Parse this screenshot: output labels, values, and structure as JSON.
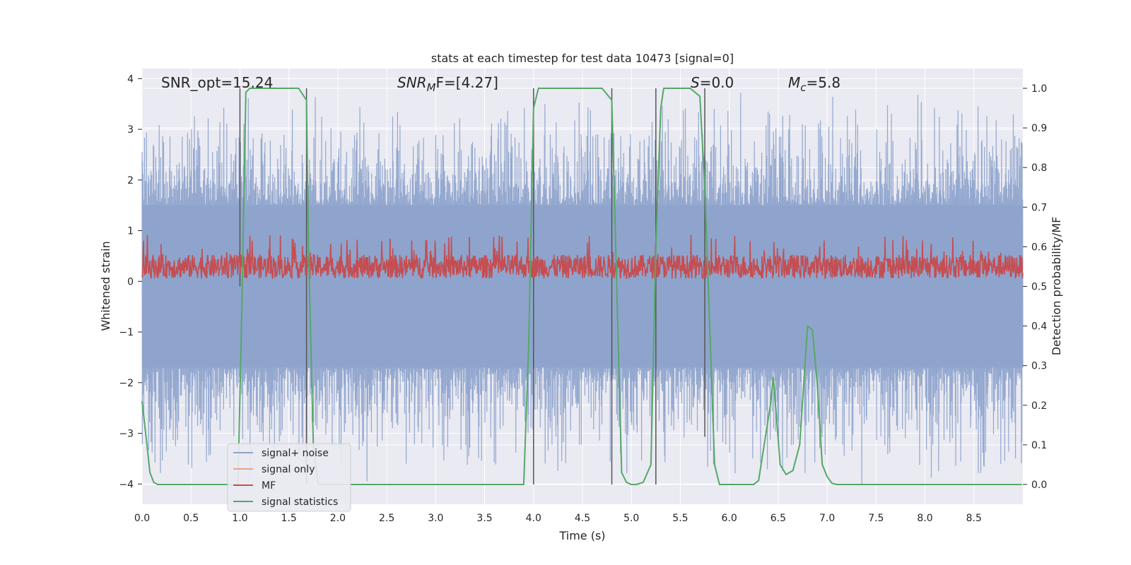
{
  "chart_data": {
    "type": "line",
    "title": "stats at each timestep for test data 10473 [signal=0]",
    "xlabel": "Time (s)",
    "ylabel": "Whitened strain",
    "y2label": "Detection probability/MF",
    "xlim": [
      0,
      9.0
    ],
    "ylim": [
      -4.4,
      4.2
    ],
    "y2lim": [
      -0.05,
      1.05
    ],
    "xticks": [
      0.0,
      0.5,
      1.0,
      1.5,
      2.0,
      2.5,
      3.0,
      3.5,
      4.0,
      4.5,
      5.0,
      5.5,
      6.0,
      6.5,
      7.0,
      7.5,
      8.0,
      8.5
    ],
    "xtick_labels": [
      "0.0",
      "0.5",
      "1.0",
      "1.5",
      "2.0",
      "2.5",
      "3.0",
      "3.5",
      "4.0",
      "4.5",
      "5.0",
      "5.5",
      "6.0",
      "6.5",
      "7.0",
      "7.5",
      "8.0",
      "8.5"
    ],
    "yticks": [
      -4,
      -3,
      -2,
      -1,
      0,
      1,
      2,
      3,
      4
    ],
    "ytick_labels": [
      "−4",
      "−3",
      "−2",
      "−1",
      "0",
      "1",
      "2",
      "3",
      "4"
    ],
    "y2ticks": [
      0.0,
      0.1,
      0.2,
      0.3,
      0.4,
      0.5,
      0.6,
      0.7,
      0.8,
      0.9,
      1.0
    ],
    "y2tick_labels": [
      "0.0",
      "0.1",
      "0.2",
      "0.3",
      "0.4",
      "0.5",
      "0.6",
      "0.7",
      "0.8",
      "0.9",
      "1.0"
    ],
    "annotations": {
      "snr_opt": "SNR_opt=15.24",
      "snr_mf_name": "SNR",
      "snr_mf_sub": "M",
      "snr_mf_rest": "F=[4.27]",
      "s_name": "S",
      "s_rest": "=0.0",
      "mc_name": "M",
      "mc_sub": "c",
      "mc_rest": "=5.8"
    },
    "noise_series": {
      "name": "signal+ noise",
      "color": "#8fa4cc",
      "band_low": -1.7,
      "band_high": 1.5,
      "peak_max": 3.8,
      "trough_min": -4.1
    },
    "signal_only_series": {
      "name": "signal only",
      "color": "#e8a58a"
    },
    "mf_series": {
      "name": "MF",
      "color": "#c44e52",
      "y2_low": 0.52,
      "y2_high": 0.58,
      "y2_peak": 0.63
    },
    "stat_series": {
      "name": "signal statistics",
      "color": "#55a868",
      "x": [
        0.0,
        0.05,
        0.08,
        0.12,
        0.16,
        0.2,
        0.98,
        1.02,
        1.06,
        1.1,
        1.6,
        1.68,
        1.7,
        1.75,
        1.8,
        2.0,
        3.9,
        3.95,
        4.0,
        4.05,
        4.08,
        4.7,
        4.8,
        4.85,
        4.9,
        4.95,
        5.0,
        5.05,
        5.12,
        5.2,
        5.25,
        5.3,
        5.33,
        5.6,
        5.7,
        5.75,
        5.8,
        5.85,
        5.9,
        6.0,
        6.25,
        6.3,
        6.42,
        6.45,
        6.52,
        6.58,
        6.65,
        6.72,
        6.8,
        6.85,
        6.9,
        6.95,
        7.0,
        7.05,
        7.1,
        8.99
      ],
      "y": [
        0.21,
        0.1,
        0.03,
        0.005,
        0.0,
        0.0,
        0.0,
        0.45,
        0.99,
        1.0,
        1.0,
        0.97,
        0.6,
        0.1,
        0.0,
        0.0,
        0.0,
        0.35,
        0.95,
        1.0,
        1.0,
        1.0,
        0.97,
        0.5,
        0.03,
        0.005,
        0.0,
        0.0,
        0.005,
        0.05,
        0.6,
        0.95,
        1.0,
        1.0,
        0.98,
        0.75,
        0.4,
        0.05,
        0.0,
        0.0,
        0.0,
        0.01,
        0.2,
        0.27,
        0.05,
        0.025,
        0.035,
        0.1,
        0.4,
        0.39,
        0.25,
        0.05,
        0.02,
        0.003,
        0.0,
        0.0
      ]
    },
    "vlines": [
      {
        "x": 1.0,
        "y2_low": 0.5,
        "y2_high": 1.0
      },
      {
        "x": 1.68,
        "y2_low": 0.0,
        "y2_high": 1.0
      },
      {
        "x": 4.0,
        "y2_low": 0.0,
        "y2_high": 1.0
      },
      {
        "x": 4.8,
        "y2_low": 0.0,
        "y2_high": 1.0
      },
      {
        "x": 5.25,
        "y2_low": 0.0,
        "y2_high": 1.0
      },
      {
        "x": 5.75,
        "y2_low": 0.12,
        "y2_high": 1.0
      }
    ],
    "legend": {
      "position": "lower-left",
      "entries": [
        "signal+ noise",
        "signal only",
        "MF",
        "signal statistics"
      ]
    },
    "style": {
      "face": "#eaeaf2",
      "grid": "#ffffff",
      "vline": "#555555"
    }
  }
}
